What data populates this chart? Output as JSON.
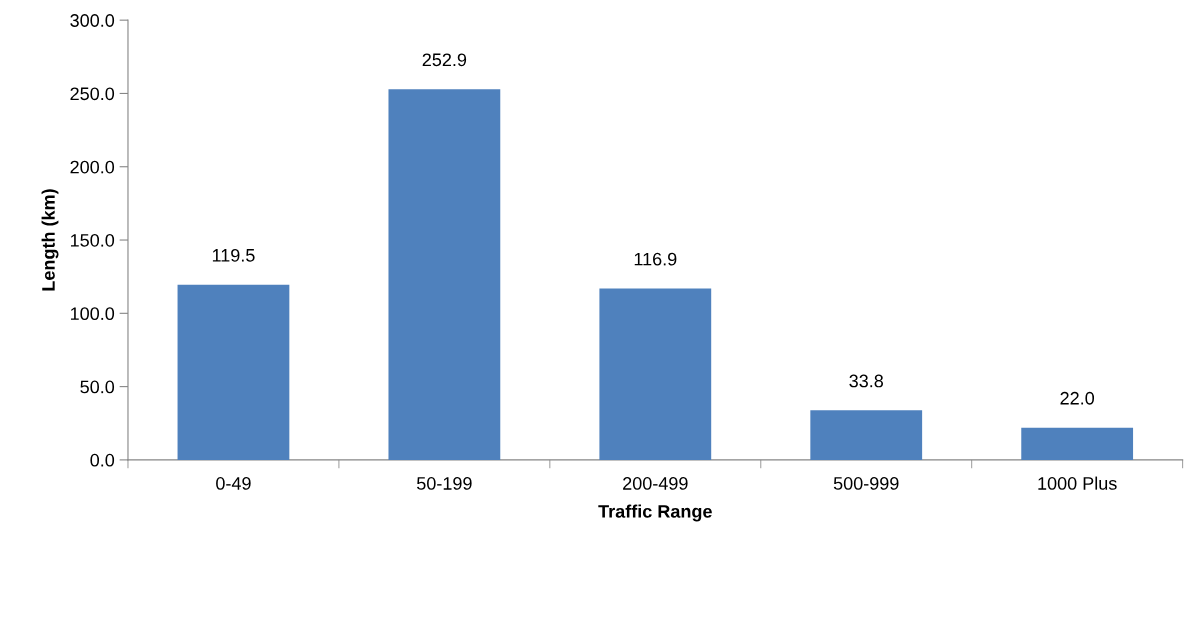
{
  "chart_data": {
    "type": "bar",
    "xlabel": "Traffic Range",
    "ylabel": "Length (km)",
    "categories": [
      "0-49",
      "50-199",
      "200-499",
      "500-999",
      "1000 Plus"
    ],
    "values": [
      119.5,
      252.9,
      116.9,
      33.8,
      22.0
    ],
    "color": "#4f81bd",
    "ylim": [
      0,
      300
    ],
    "yticks": [
      {
        "value": 0,
        "label": "0.0"
      },
      {
        "value": 50,
        "label": "50.0"
      },
      {
        "value": 100,
        "label": "100.0"
      },
      {
        "value": 150,
        "label": "150.0"
      },
      {
        "value": 200,
        "label": "200.0"
      },
      {
        "value": 250,
        "label": "250.0"
      },
      {
        "value": 300,
        "label": "300.0"
      }
    ],
    "value_labels": [
      "119.5",
      "252.9",
      "116.9",
      "33.8",
      "22.0"
    ],
    "grid": false,
    "legend": false
  }
}
